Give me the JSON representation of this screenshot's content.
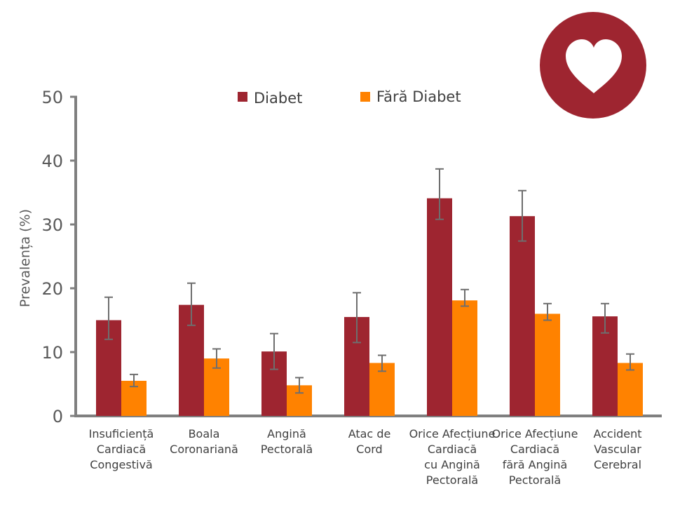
{
  "chart_data": {
    "type": "bar",
    "ylabel": "Prevalența (%)",
    "ylim": [
      0,
      50
    ],
    "yticks": [
      0,
      10,
      20,
      30,
      40,
      50
    ],
    "grid": false,
    "legend_position": "top",
    "categories": [
      [
        "Insuficiență",
        "Cardiacă",
        "Congestivă"
      ],
      [
        "Boala",
        "Coronariană"
      ],
      [
        "Angină",
        "Pectorală"
      ],
      [
        "Atac de",
        "Cord"
      ],
      [
        "Orice Afecțiune",
        "Cardiacă",
        "cu Angină",
        "Pectorală"
      ],
      [
        "Orice Afecțiune",
        "Cardiacă",
        "fără Angină",
        "Pectorală"
      ],
      [
        "Accident",
        "Vascular",
        "Cerebral"
      ]
    ],
    "series": [
      {
        "name": "Diabet",
        "color": "#9e2530",
        "values": [
          15.0,
          17.4,
          10.1,
          15.5,
          34.1,
          31.3,
          15.6
        ],
        "error_low": [
          12.0,
          14.2,
          7.3,
          11.5,
          30.8,
          27.4,
          13.0
        ],
        "error_high": [
          18.6,
          20.8,
          12.9,
          19.3,
          38.7,
          35.3,
          17.6
        ]
      },
      {
        "name": "Fără Diabet",
        "color": "#ff8200",
        "values": [
          5.5,
          9.0,
          4.8,
          8.3,
          18.1,
          16.0,
          8.3
        ],
        "error_low": [
          4.6,
          7.5,
          3.6,
          7.0,
          17.2,
          15.0,
          7.2
        ],
        "error_high": [
          6.5,
          10.5,
          6.0,
          9.5,
          19.8,
          17.6,
          9.7
        ]
      }
    ]
  },
  "decor": {
    "logo_icon": "heart-icon",
    "logo_color": "#9e2530"
  }
}
